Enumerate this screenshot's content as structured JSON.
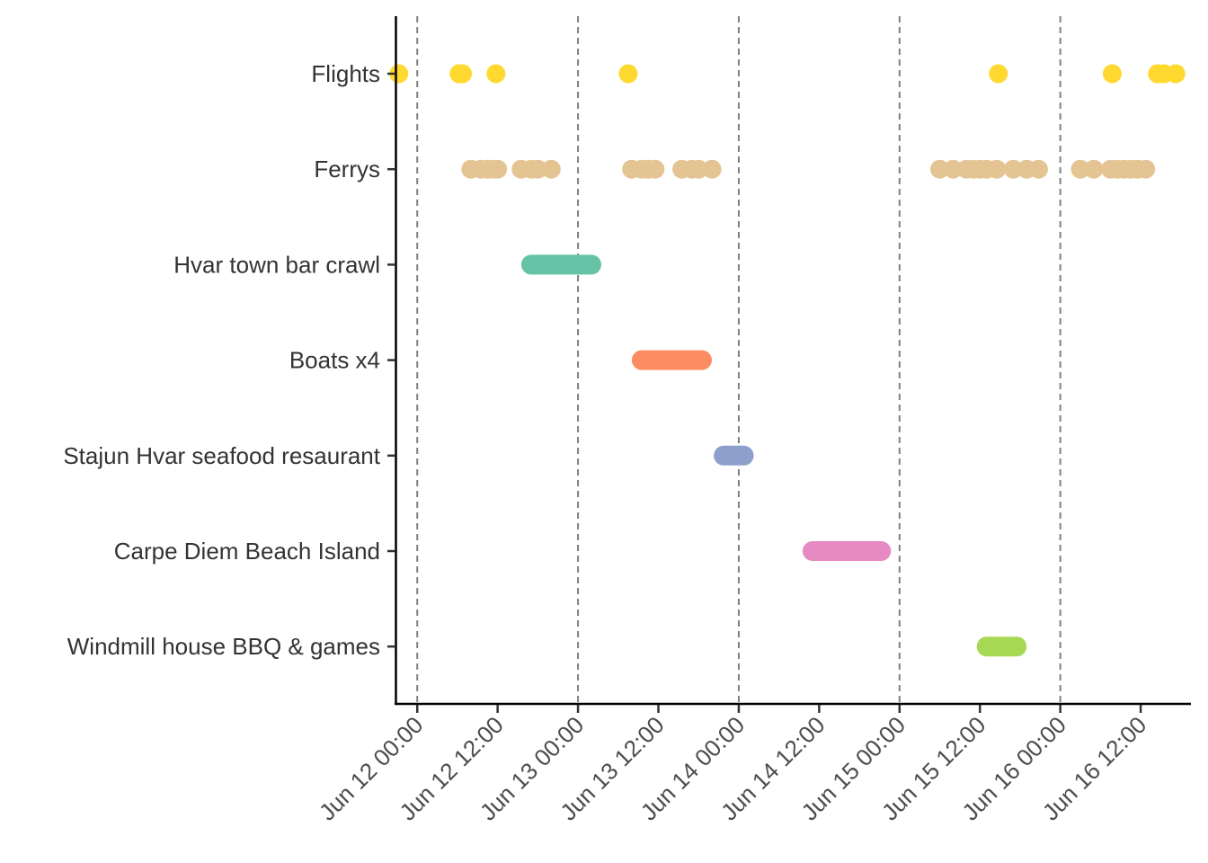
{
  "chart_data": {
    "type": "scatter",
    "title": "",
    "xlabel": "",
    "ylabel": "",
    "x_axis": {
      "scale": "datetime",
      "range": [
        "2024-06-11T20:45",
        "2024-06-16T19:30"
      ],
      "ticks": [
        {
          "value": "2024-06-12T00:00",
          "label": "Jun 12 00:00"
        },
        {
          "value": "2024-06-12T12:00",
          "label": "Jun 12 12:00"
        },
        {
          "value": "2024-06-13T00:00",
          "label": "Jun 13 00:00"
        },
        {
          "value": "2024-06-13T12:00",
          "label": "Jun 13 12:00"
        },
        {
          "value": "2024-06-14T00:00",
          "label": "Jun 14 00:00"
        },
        {
          "value": "2024-06-14T12:00",
          "label": "Jun 14 12:00"
        },
        {
          "value": "2024-06-15T00:00",
          "label": "Jun 15 00:00"
        },
        {
          "value": "2024-06-15T12:00",
          "label": "Jun 15 12:00"
        },
        {
          "value": "2024-06-16T00:00",
          "label": "Jun 16 00:00"
        },
        {
          "value": "2024-06-16T12:00",
          "label": "Jun 16 12:00"
        }
      ],
      "tick_label_rotation_deg": -45
    },
    "vlines": [
      "2024-06-12T00:00",
      "2024-06-13T00:00",
      "2024-06-14T00:00",
      "2024-06-15T00:00",
      "2024-06-16T00:00"
    ],
    "vline_style": "dashed",
    "grid": false,
    "legend": "none",
    "categories": [
      "Flights",
      "Ferrys",
      "Hvar town bar crawl",
      "Boats x4",
      "Stajun Hvar seafood resaurant",
      "Carpe Diem Beach Island",
      "Windmill house BBQ & games"
    ],
    "series": [
      {
        "category": "Flights",
        "color": "#FFD92F",
        "points": [
          "2024-06-11T21:15",
          "2024-06-12T06:15",
          "2024-06-12T06:45",
          "2024-06-12T11:45",
          "2024-06-13T07:30",
          "2024-06-15T14:45",
          "2024-06-16T07:45",
          "2024-06-16T14:30",
          "2024-06-16T14:45",
          "2024-06-16T15:30",
          "2024-06-16T17:15"
        ]
      },
      {
        "category": "Ferrys",
        "color": "#E5C494",
        "points": [
          "2024-06-12T08:00",
          "2024-06-12T09:30",
          "2024-06-12T10:30",
          "2024-06-12T11:30",
          "2024-06-12T12:00",
          "2024-06-12T15:30",
          "2024-06-12T17:00",
          "2024-06-12T18:00",
          "2024-06-12T20:00",
          "2024-06-13T08:00",
          "2024-06-13T09:30",
          "2024-06-13T10:30",
          "2024-06-13T11:30",
          "2024-06-13T15:30",
          "2024-06-13T17:00",
          "2024-06-13T18:00",
          "2024-06-13T20:00",
          "2024-06-15T06:00",
          "2024-06-15T08:00",
          "2024-06-15T10:00",
          "2024-06-15T11:00",
          "2024-06-15T12:00",
          "2024-06-15T13:00",
          "2024-06-15T14:30",
          "2024-06-15T17:00",
          "2024-06-15T19:00",
          "2024-06-15T20:45",
          "2024-06-16T03:00",
          "2024-06-16T05:00",
          "2024-06-16T07:30",
          "2024-06-16T08:30",
          "2024-06-16T09:30",
          "2024-06-16T10:30",
          "2024-06-16T11:30",
          "2024-06-16T12:45"
        ]
      },
      {
        "category": "Hvar town bar crawl",
        "color": "#66C2A5",
        "start": "2024-06-12T17:00",
        "end": "2024-06-13T02:00"
      },
      {
        "category": "Boats x4",
        "color": "#FC8D62",
        "start": "2024-06-13T09:30",
        "end": "2024-06-13T18:30"
      },
      {
        "category": "Stajun Hvar seafood resaurant",
        "color": "#8DA0CB",
        "start": "2024-06-13T21:45",
        "end": "2024-06-14T00:45"
      },
      {
        "category": "Carpe Diem Beach Island",
        "color": "#E78AC3",
        "start": "2024-06-14T11:00",
        "end": "2024-06-14T21:15"
      },
      {
        "category": "Windmill house BBQ & games",
        "color": "#A6D854",
        "start": "2024-06-15T13:00",
        "end": "2024-06-15T17:30"
      }
    ]
  }
}
